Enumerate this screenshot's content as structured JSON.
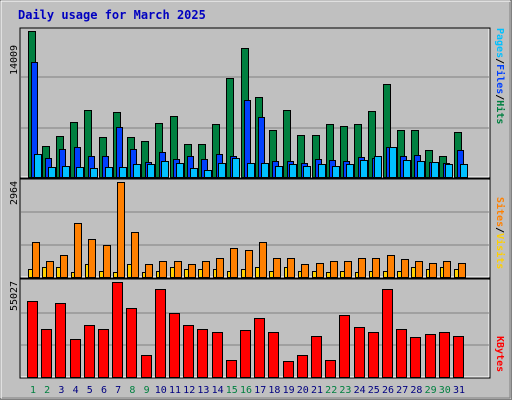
{
  "title": "Daily usage for March 2025",
  "legend": {
    "top": [
      {
        "text": "Pages",
        "color": "#00c0ff"
      },
      {
        "text": "/",
        "color": "#000000"
      },
      {
        "text": "Files",
        "color": "#0040ff"
      },
      {
        "text": "/",
        "color": "#000000"
      },
      {
        "text": "Hits",
        "color": "#008040"
      }
    ],
    "middle": [
      {
        "text": "Sites",
        "color": "#ff8000"
      },
      {
        "text": "/",
        "color": "#000000"
      },
      {
        "text": "Visits",
        "color": "#ffd000"
      }
    ],
    "bottom": [
      {
        "text": "KBytes",
        "color": "#ff0000"
      }
    ]
  },
  "colors": {
    "hits": "#008040",
    "files": "#0040ff",
    "pages": "#00c0ff",
    "visits": "#ffd000",
    "sites": "#ff8000",
    "kbytes": "#ff0000",
    "weekend_label": "#008040",
    "weekday_label": "#000080"
  },
  "chart_data": [
    {
      "type": "bar",
      "panel": "hits-files-pages",
      "ymax_label": "14009",
      "ylim": [
        0,
        14009
      ],
      "x": [
        1,
        2,
        3,
        4,
        5,
        6,
        7,
        8,
        9,
        10,
        11,
        12,
        13,
        14,
        15,
        16,
        17,
        18,
        19,
        20,
        21,
        22,
        23,
        24,
        25,
        26,
        27,
        28,
        29,
        30,
        31
      ],
      "series": [
        {
          "name": "Hits",
          "values": [
            14009,
            3000,
            3900,
            5300,
            6400,
            3800,
            6200,
            3800,
            3500,
            5200,
            5900,
            3200,
            3200,
            5100,
            9500,
            12400,
            7700,
            4500,
            6400,
            4000,
            4000,
            5100,
            4900,
            5100,
            6300,
            8900,
            4500,
            4500,
            2600,
            2000,
            4300
          ]
        },
        {
          "name": "Files",
          "values": [
            11000,
            1800,
            2700,
            2900,
            2000,
            2000,
            4800,
            2700,
            1400,
            2400,
            1700,
            2000,
            1700,
            2200,
            2000,
            7400,
            5800,
            1500,
            1500,
            1300,
            1700,
            1600,
            1500,
            1900,
            1800,
            2900,
            2000,
            2100,
            1400,
            1300,
            2600
          ]
        },
        {
          "name": "Pages",
          "values": [
            2200,
            1000,
            1100,
            1000,
            900,
            1000,
            1000,
            1200,
            1200,
            1500,
            1300,
            900,
            700,
            1300,
            1800,
            1300,
            1300,
            1100,
            1200,
            1100,
            1200,
            1100,
            1200,
            1600,
            2000,
            2900,
            1600,
            1500,
            1400,
            1200,
            1200
          ]
        }
      ]
    },
    {
      "type": "bar",
      "panel": "sites-visits",
      "ymax_label": "2964",
      "ylim": [
        0,
        2964
      ],
      "x": [
        1,
        2,
        3,
        4,
        5,
        6,
        7,
        8,
        9,
        10,
        11,
        12,
        13,
        14,
        15,
        16,
        17,
        18,
        19,
        20,
        21,
        22,
        23,
        24,
        25,
        26,
        27,
        28,
        29,
        30,
        31
      ],
      "series": [
        {
          "name": "Visits",
          "values": [
            250,
            300,
            300,
            150,
            400,
            200,
            150,
            400,
            150,
            200,
            300,
            250,
            250,
            250,
            200,
            250,
            300,
            200,
            300,
            200,
            200,
            150,
            200,
            150,
            200,
            200,
            200,
            300,
            250,
            300,
            250
          ]
        },
        {
          "name": "Sites",
          "values": [
            1100,
            500,
            700,
            1700,
            1200,
            1000,
            2964,
            1400,
            400,
            500,
            500,
            400,
            500,
            600,
            900,
            850,
            1100,
            600,
            600,
            400,
            450,
            500,
            500,
            600,
            600,
            700,
            550,
            500,
            450,
            500,
            450
          ]
        }
      ]
    },
    {
      "type": "bar",
      "panel": "kbytes",
      "ymax_label": "55027",
      "ylim": [
        0,
        55027
      ],
      "x": [
        1,
        2,
        3,
        4,
        5,
        6,
        7,
        8,
        9,
        10,
        11,
        12,
        13,
        14,
        15,
        16,
        17,
        18,
        19,
        20,
        21,
        22,
        23,
        24,
        25,
        26,
        27,
        28,
        29,
        30,
        31
      ],
      "series": [
        {
          "name": "KBytes",
          "values": [
            44000,
            28000,
            43000,
            22000,
            30000,
            28000,
            55027,
            40000,
            13000,
            51000,
            37000,
            30000,
            28000,
            26000,
            10000,
            27000,
            34000,
            26000,
            9000,
            13000,
            24000,
            10000,
            36000,
            29000,
            26000,
            51000,
            28000,
            23000,
            25000,
            26000,
            24000
          ]
        }
      ]
    }
  ],
  "x_labels": [
    {
      "text": "1",
      "weekend": true
    },
    {
      "text": "2",
      "weekend": true
    },
    {
      "text": "3",
      "weekend": false
    },
    {
      "text": "4",
      "weekend": false
    },
    {
      "text": "5",
      "weekend": false
    },
    {
      "text": "6",
      "weekend": false
    },
    {
      "text": "7",
      "weekend": false
    },
    {
      "text": "8",
      "weekend": true
    },
    {
      "text": "9",
      "weekend": true
    },
    {
      "text": "10",
      "weekend": false
    },
    {
      "text": "11",
      "weekend": false
    },
    {
      "text": "12",
      "weekend": false
    },
    {
      "text": "13",
      "weekend": false
    },
    {
      "text": "14",
      "weekend": false
    },
    {
      "text": "15",
      "weekend": true
    },
    {
      "text": "16",
      "weekend": true
    },
    {
      "text": "17",
      "weekend": false
    },
    {
      "text": "18",
      "weekend": false
    },
    {
      "text": "19",
      "weekend": false
    },
    {
      "text": "20",
      "weekend": false
    },
    {
      "text": "21",
      "weekend": false
    },
    {
      "text": "22",
      "weekend": true
    },
    {
      "text": "23",
      "weekend": true
    },
    {
      "text": "24",
      "weekend": false
    },
    {
      "text": "25",
      "weekend": false
    },
    {
      "text": "26",
      "weekend": false
    },
    {
      "text": "27",
      "weekend": false
    },
    {
      "text": "28",
      "weekend": false
    },
    {
      "text": "29",
      "weekend": true
    },
    {
      "text": "30",
      "weekend": true
    },
    {
      "text": "31",
      "weekend": false
    }
  ]
}
